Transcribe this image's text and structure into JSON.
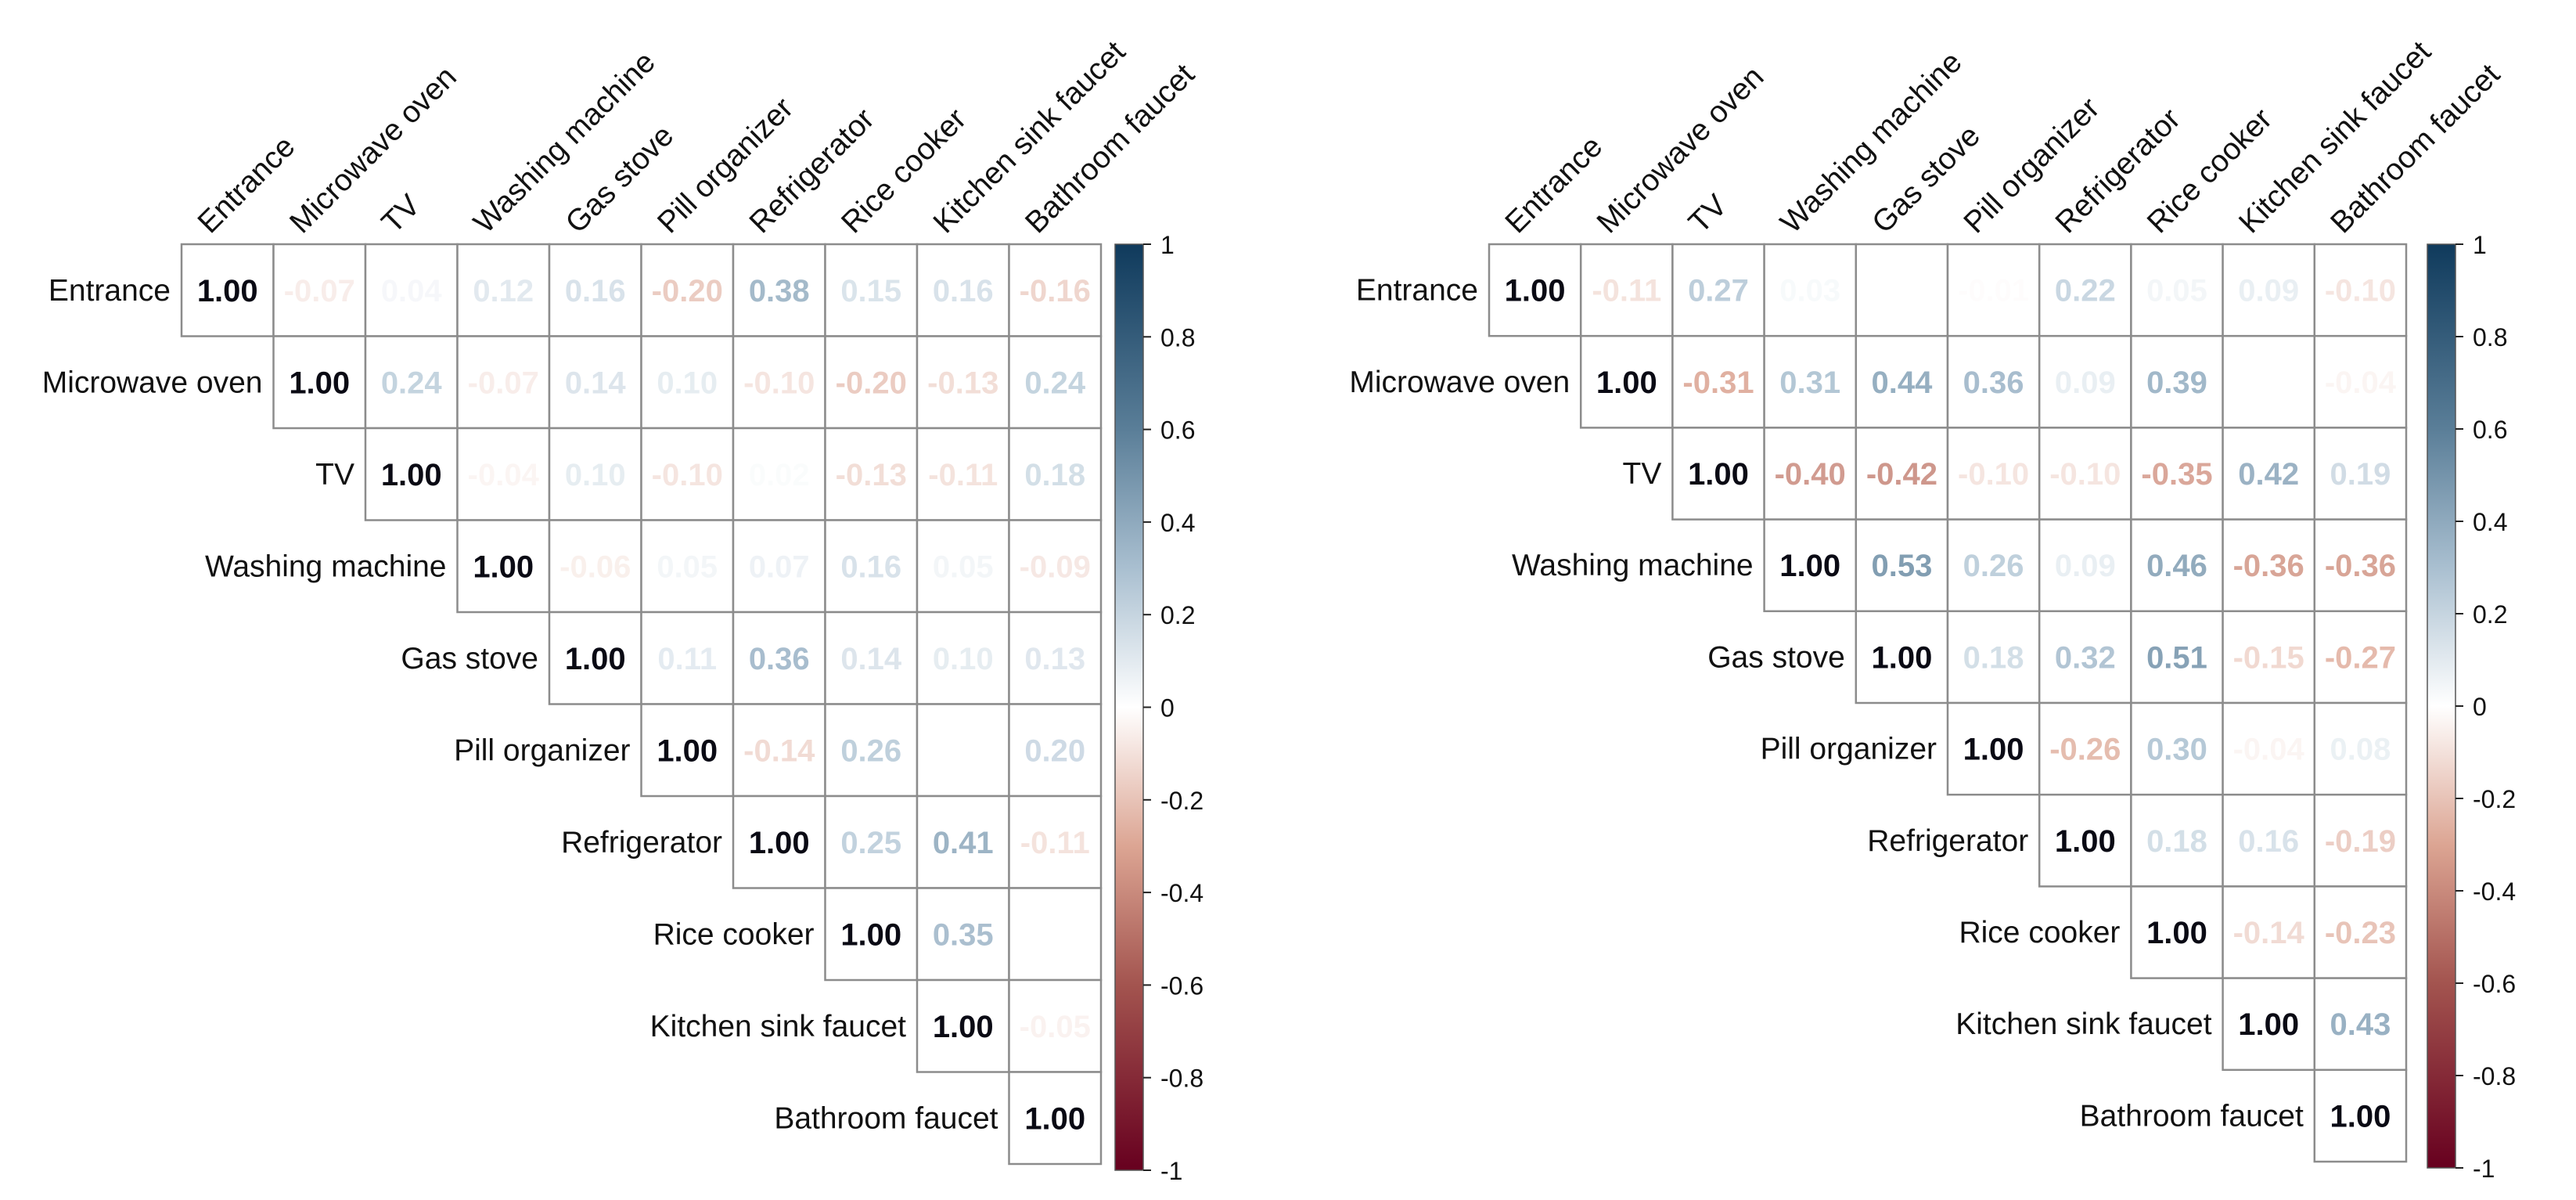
{
  "chart_data": [
    {
      "type": "heatmap",
      "title": "",
      "labels": [
        "Entrance",
        "Microwave oven",
        "TV",
        "Washing machine",
        "Gas stove",
        "Pill organizer",
        "Refrigerator",
        "Rice cooker",
        "Kitchen sink faucet",
        "Bathroom faucet"
      ],
      "upper_triangle_rows": [
        [
          1.0,
          -0.07,
          0.04,
          0.12,
          0.16,
          -0.2,
          0.38,
          0.15,
          0.16,
          -0.16
        ],
        [
          1.0,
          0.24,
          -0.07,
          0.14,
          0.1,
          -0.1,
          -0.2,
          -0.13,
          0.24
        ],
        [
          1.0,
          -0.04,
          0.1,
          -0.1,
          0.02,
          -0.13,
          -0.11,
          0.18
        ],
        [
          1.0,
          -0.06,
          0.05,
          0.07,
          0.16,
          0.05,
          -0.09
        ],
        [
          1.0,
          0.11,
          0.36,
          0.14,
          0.1,
          0.13
        ],
        [
          1.0,
          -0.14,
          0.26,
          0.0,
          0.2
        ],
        [
          1.0,
          0.25,
          0.41,
          -0.11
        ],
        [
          1.0,
          0.35,
          0.0
        ],
        [
          1.0,
          -0.05
        ],
        [
          1.0
        ]
      ],
      "colorbar": {
        "range": [
          -1,
          1
        ],
        "ticks": [
          "1",
          "0.8",
          "0.6",
          "0.4",
          "0.2",
          "0",
          "-0.2",
          "-0.4",
          "-0.6",
          "-0.8",
          "-1"
        ]
      }
    },
    {
      "type": "heatmap",
      "title": "",
      "labels": [
        "Entrance",
        "Microwave oven",
        "TV",
        "Washing machine",
        "Gas stove",
        "Pill organizer",
        "Refrigerator",
        "Rice cooker",
        "Kitchen sink faucet",
        "Bathroom faucet"
      ],
      "upper_triangle_rows": [
        [
          1.0,
          -0.11,
          0.27,
          0.03,
          0.0,
          -0.01,
          0.22,
          0.05,
          0.09,
          -0.1
        ],
        [
          1.0,
          -0.31,
          0.31,
          0.44,
          0.36,
          0.09,
          0.39,
          0.0,
          -0.04
        ],
        [
          1.0,
          -0.4,
          -0.42,
          -0.1,
          -0.1,
          -0.35,
          0.42,
          0.19
        ],
        [
          1.0,
          0.53,
          0.26,
          0.09,
          0.46,
          -0.36,
          -0.36
        ],
        [
          1.0,
          0.18,
          0.32,
          0.51,
          -0.15,
          -0.27
        ],
        [
          1.0,
          -0.26,
          0.3,
          -0.04,
          0.08
        ],
        [
          1.0,
          0.18,
          0.16,
          -0.19
        ],
        [
          1.0,
          -0.14,
          -0.23
        ],
        [
          1.0,
          0.43
        ],
        [
          1.0
        ]
      ],
      "colorbar": {
        "range": [
          -1,
          1
        ],
        "ticks": [
          "1",
          "0.8",
          "0.6",
          "0.4",
          "0.2",
          "0",
          "-0.2",
          "-0.4",
          "-0.6",
          "-0.8",
          "-1"
        ]
      }
    }
  ],
  "colors": {
    "stops": [
      [
        -1,
        "#67001f"
      ],
      [
        -0.6,
        "#a3544f"
      ],
      [
        -0.3,
        "#dca593"
      ],
      [
        0,
        "#ffffff"
      ],
      [
        0.3,
        "#a9bfd0"
      ],
      [
        0.6,
        "#5a7e98"
      ],
      [
        1,
        "#0f3a5c"
      ]
    ],
    "grid": "#8c8c8c",
    "diag_text": "#0a0a14"
  }
}
